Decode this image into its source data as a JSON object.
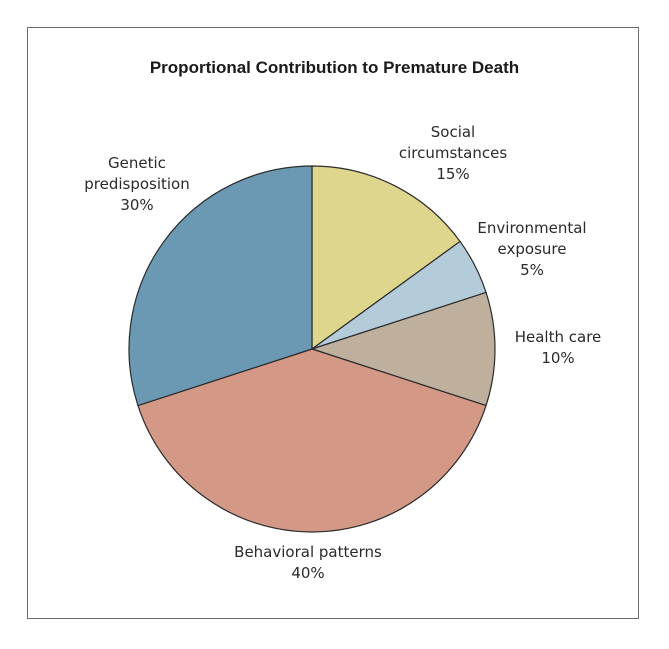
{
  "chart_data": {
    "type": "pie",
    "title": "Proportional Contribution to Premature Death",
    "slices": [
      {
        "label_lines": [
          "Social",
          "circumstances"
        ],
        "value_label": "15%",
        "value": 15,
        "color": "#dfd68e"
      },
      {
        "label_lines": [
          "Environmental",
          "exposure"
        ],
        "value_label": "5%",
        "value": 5,
        "color": "#b4cbd9"
      },
      {
        "label_lines": [
          "Health care"
        ],
        "value_label": "10%",
        "value": 10,
        "color": "#bfb09e"
      },
      {
        "label_lines": [
          "Behavioral patterns"
        ],
        "value_label": "40%",
        "value": 40,
        "color": "#d49886"
      },
      {
        "label_lines": [
          "Genetic",
          "predisposition"
        ],
        "value_label": "30%",
        "value": 30,
        "color": "#6b98b2"
      }
    ]
  }
}
